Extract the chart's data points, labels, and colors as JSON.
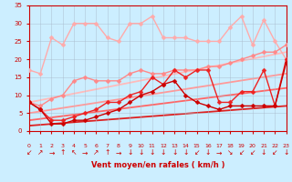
{
  "xlabel": "Vent moyen/en rafales ( km/h )",
  "xlim": [
    0,
    23
  ],
  "ylim": [
    0,
    35
  ],
  "yticks": [
    0,
    5,
    10,
    15,
    20,
    25,
    30,
    35
  ],
  "xticks": [
    0,
    1,
    2,
    3,
    4,
    5,
    6,
    7,
    8,
    9,
    10,
    11,
    12,
    13,
    14,
    15,
    16,
    17,
    18,
    19,
    20,
    21,
    22,
    23
  ],
  "bg_color": "#cceeff",
  "grid_color": "#aabbcc",
  "series": [
    {
      "x": [
        0,
        23
      ],
      "y": [
        8.0,
        22.0
      ],
      "color": "#ffbbbb",
      "marker": null,
      "markersize": 0,
      "linewidth": 1.3,
      "zorder": 1
    },
    {
      "x": [
        0,
        23
      ],
      "y": [
        5.0,
        16.0
      ],
      "color": "#ff9999",
      "marker": null,
      "markersize": 0,
      "linewidth": 1.3,
      "zorder": 1
    },
    {
      "x": [
        0,
        23
      ],
      "y": [
        3.0,
        12.0
      ],
      "color": "#ff6666",
      "marker": null,
      "markersize": 0,
      "linewidth": 1.3,
      "zorder": 1
    },
    {
      "x": [
        0,
        23
      ],
      "y": [
        1.5,
        7.0
      ],
      "color": "#dd2222",
      "marker": null,
      "markersize": 0,
      "linewidth": 1.3,
      "zorder": 1
    },
    {
      "x": [
        0,
        1,
        2,
        3,
        4,
        5,
        6,
        7,
        8,
        9,
        10,
        11,
        12,
        13,
        14,
        15,
        16,
        17,
        18,
        19,
        20,
        21,
        22,
        23
      ],
      "y": [
        17,
        16,
        26,
        24,
        30,
        30,
        30,
        26,
        25,
        30,
        30,
        32,
        26,
        26,
        26,
        25,
        25,
        25,
        29,
        32,
        24,
        31,
        25,
        20
      ],
      "color": "#ffaaaa",
      "marker": "D",
      "markersize": 2.5,
      "linewidth": 1.0,
      "zorder": 3
    },
    {
      "x": [
        0,
        1,
        2,
        3,
        4,
        5,
        6,
        7,
        8,
        9,
        10,
        11,
        12,
        13,
        14,
        15,
        16,
        17,
        18,
        19,
        20,
        21,
        22,
        23
      ],
      "y": [
        8,
        7,
        9,
        10,
        14,
        15,
        14,
        14,
        14,
        16,
        17,
        16,
        16,
        17,
        17,
        17,
        18,
        18,
        19,
        20,
        21,
        22,
        22,
        24
      ],
      "color": "#ff8888",
      "marker": "D",
      "markersize": 2.5,
      "linewidth": 1.0,
      "zorder": 3
    },
    {
      "x": [
        0,
        1,
        2,
        3,
        4,
        5,
        6,
        7,
        8,
        9,
        10,
        11,
        12,
        13,
        14,
        15,
        16,
        17,
        18,
        19,
        20,
        21,
        22,
        23
      ],
      "y": [
        8,
        6,
        3,
        3,
        4,
        5,
        6,
        8,
        8,
        10,
        11,
        15,
        13,
        17,
        15,
        17,
        17,
        8,
        8,
        11,
        11,
        17,
        7,
        20
      ],
      "color": "#ee2222",
      "marker": "D",
      "markersize": 2.5,
      "linewidth": 1.0,
      "zorder": 4
    },
    {
      "x": [
        0,
        1,
        2,
        3,
        4,
        5,
        6,
        7,
        8,
        9,
        10,
        11,
        12,
        13,
        14,
        15,
        16,
        17,
        18,
        19,
        20,
        21,
        22,
        23
      ],
      "y": [
        8,
        6,
        2,
        2,
        3,
        3,
        4,
        5,
        6,
        8,
        10,
        11,
        13,
        14,
        10,
        8,
        7,
        6,
        7,
        7,
        7,
        7,
        7,
        19
      ],
      "color": "#cc0000",
      "marker": "D",
      "markersize": 2.5,
      "linewidth": 1.0,
      "zorder": 4
    }
  ],
  "wind_symbols": [
    "↙",
    "↗",
    "→",
    "↑",
    "↖",
    "→",
    "↗",
    "↑",
    "→",
    "↓",
    "↓",
    "↓",
    "↓",
    "↓",
    "↓",
    "↙",
    "↓",
    "→",
    "↘",
    "↙",
    "↙",
    "↓",
    "↙",
    "↓"
  ],
  "wind_color": "#cc0000",
  "wind_fontsize": 5.5
}
